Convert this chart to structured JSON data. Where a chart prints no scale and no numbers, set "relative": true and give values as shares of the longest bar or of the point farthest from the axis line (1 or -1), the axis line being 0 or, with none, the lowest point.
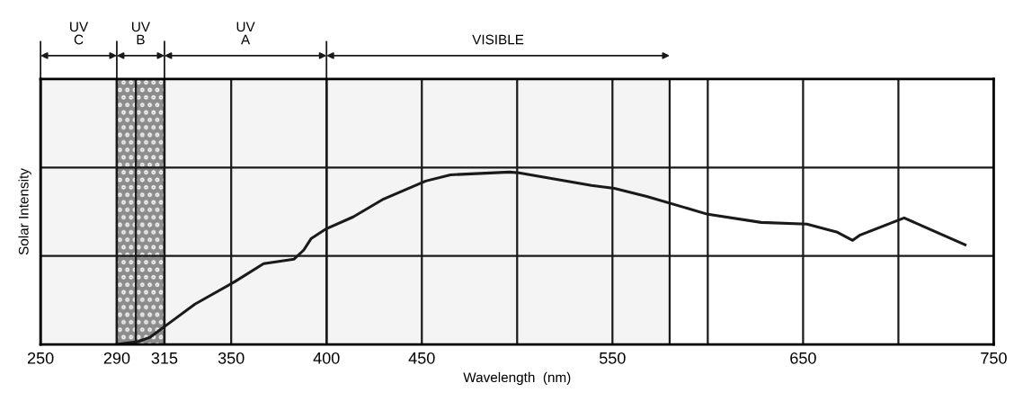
{
  "chart_data": {
    "type": "line",
    "ylabel": "Solar Intensity",
    "xlabel": "Wavelength  (nm)",
    "relative": true,
    "grid": true,
    "legend": false,
    "marker": "none",
    "line_style": "solid",
    "xlim": [
      250,
      750
    ],
    "xticks": [
      250,
      290,
      {
        "value": 300,
        "label": null
      },
      315,
      350,
      400,
      450,
      {
        "value": 500,
        "label": null
      },
      550,
      {
        "value": 600,
        "label": null
      },
      650,
      {
        "value": 700,
        "label": null
      },
      750
    ],
    "series": [
      {
        "color": "#1a1a1a",
        "x": [
          290,
          301,
          307.5,
          317,
          331,
          352,
          367,
          383,
          388,
          392,
          400,
          414,
          430,
          452,
          465,
          496,
          501,
          539,
          551,
          568,
          600,
          628,
          652,
          668,
          676,
          680,
          703,
          735
        ],
        "values": [
          0,
          0.016,
          0.042,
          0.12,
          0.234,
          0.365,
          0.469,
          0.495,
          0.547,
          0.615,
          0.672,
          0.74,
          0.844,
          0.948,
          0.984,
          1.0,
          0.995,
          0.922,
          0.906,
          0.859,
          0.755,
          0.708,
          0.698,
          0.651,
          0.604,
          0.635,
          0.734,
          0.578
        ]
      }
    ],
    "bands": [
      {
        "axis": "x",
        "from": 250,
        "to": 290,
        "label": "UV\nC",
        "color": "#f4f4f4"
      },
      {
        "axis": "x",
        "from": 290,
        "to": 315,
        "label": "UV\nB",
        "color": "#8c8c8c"
      },
      {
        "axis": "x",
        "from": 315,
        "to": 400,
        "label": "UV\nA",
        "color": "#f4f4f4"
      },
      {
        "axis": "x",
        "from": 400,
        "to": 580,
        "label": "VISIBLE",
        "color": "#f4f4f4"
      }
    ]
  }
}
